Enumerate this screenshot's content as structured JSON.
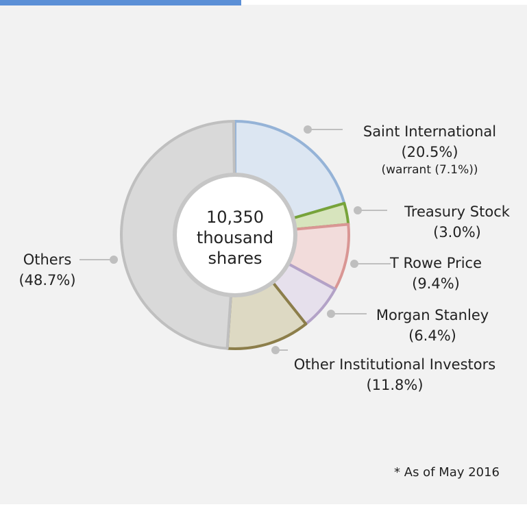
{
  "chart_data": {
    "type": "donut",
    "center_label": [
      "10,350",
      "thousand",
      "shares"
    ],
    "categories": [
      "Saint International",
      "Treasury Stock",
      "T Rowe Price",
      "Morgan Stanley",
      "Other Institutional Investors",
      "Others"
    ],
    "values": [
      20.5,
      3.0,
      9.4,
      6.4,
      11.8,
      48.7
    ],
    "value_labels": [
      "(20.5%)",
      "(3.0%)",
      "(9.4%)",
      "(6.4%)",
      "(11.8%)",
      "(48.7%)"
    ],
    "notes": [
      "(warrant (7.1%))",
      null,
      null,
      null,
      null,
      null
    ],
    "colors": [
      "#dce6f2",
      "#d7e4bd",
      "#f2dcdb",
      "#e6e0ec",
      "#ddd9c3",
      "#d9d9d9"
    ],
    "edge_colors": [
      "#95b3d7",
      "#77a33a",
      "#d99694",
      "#b3a2c7",
      "#8c7e4a",
      "#bfbfbf"
    ],
    "footnote": "* As of  May 2016"
  }
}
